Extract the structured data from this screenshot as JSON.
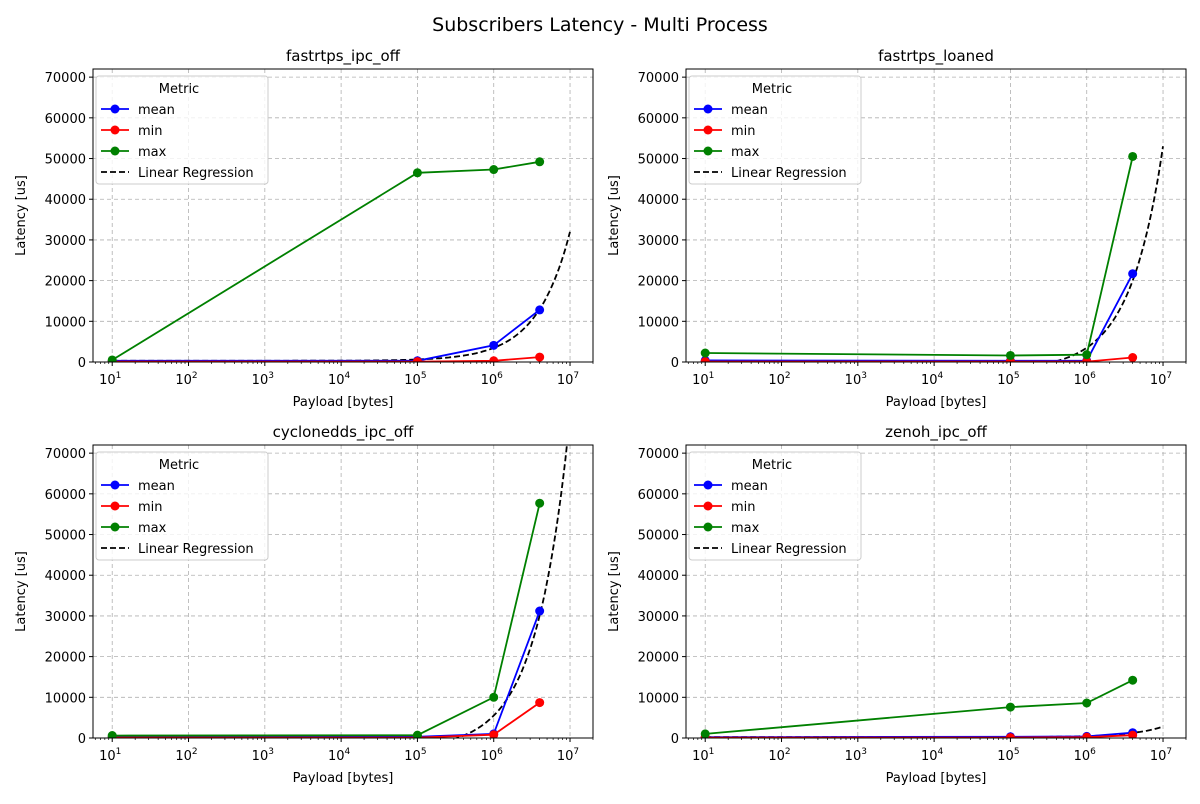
{
  "chart_data": {
    "suptitle": "Subscribers Latency - Multi Process",
    "type": "line",
    "xscale": "log",
    "xlim": [
      5.6,
      20000000
    ],
    "ylim": [
      0,
      72000
    ],
    "xticks": [
      10,
      100,
      1000,
      10000,
      100000,
      1000000,
      10000000
    ],
    "xtick_labels": [
      [
        "10",
        "1"
      ],
      [
        "10",
        "2"
      ],
      [
        "10",
        "3"
      ],
      [
        "10",
        "4"
      ],
      [
        "10",
        "5"
      ],
      [
        "10",
        "6"
      ],
      [
        "10",
        "7"
      ]
    ],
    "yticks": [
      0,
      10000,
      20000,
      30000,
      40000,
      50000,
      60000,
      70000
    ],
    "ytick_labels": [
      "0",
      "10000",
      "20000",
      "30000",
      "40000",
      "50000",
      "60000",
      "70000"
    ],
    "xlabel": "Payload [bytes]",
    "ylabel": "Latency [us]",
    "grid": true,
    "legend": {
      "title": "Metric",
      "placement": "top-left"
    },
    "x": [
      10,
      100000,
      1000000,
      4000000
    ],
    "colors": {
      "mean": "#0000ff",
      "min": "#ff0000",
      "max": "#008000",
      "Linear Regression": "#000000"
    },
    "panels": [
      {
        "title": "fastrtps_ipc_off",
        "series": [
          {
            "name": "mean",
            "values": [
              300,
              300,
              4100,
              12800
            ]
          },
          {
            "name": "min",
            "values": [
              100,
              100,
              300,
              1200
            ]
          },
          {
            "name": "max",
            "values": [
              500,
              46500,
              47300,
              49200
            ]
          }
        ],
        "regression": {
          "name": "Linear Regression",
          "intercept": 300,
          "slope": 0.00317
        }
      },
      {
        "title": "fastrtps_loaned",
        "series": [
          {
            "name": "mean",
            "values": [
              400,
              300,
              300,
              21700
            ]
          },
          {
            "name": "min",
            "values": [
              100,
              100,
              100,
              1100
            ]
          },
          {
            "name": "max",
            "values": [
              2200,
              1600,
              1800,
              50500
            ]
          }
        ],
        "regression": {
          "name": "Linear Regression",
          "intercept": -2000,
          "slope": 0.0055
        }
      },
      {
        "title": "cyclonedds_ipc_off",
        "series": [
          {
            "name": "mean",
            "values": [
              300,
              300,
              1000,
              31200
            ]
          },
          {
            "name": "min",
            "values": [
              100,
              100,
              800,
              8700
            ]
          },
          {
            "name": "max",
            "values": [
              600,
              700,
              10000,
              57700
            ]
          }
        ],
        "regression": {
          "name": "Linear Regression",
          "intercept": -2700,
          "slope": 0.0082
        }
      },
      {
        "title": "zenoh_ipc_off",
        "series": [
          {
            "name": "mean",
            "values": [
              200,
              300,
              400,
              1300
            ]
          },
          {
            "name": "min",
            "values": [
              100,
              100,
              200,
              700
            ]
          },
          {
            "name": "max",
            "values": [
              1000,
              7600,
              8600,
              14200
            ]
          }
        ],
        "regression": {
          "name": "Linear Regression",
          "intercept": 200,
          "slope": 0.00026
        }
      }
    ]
  }
}
